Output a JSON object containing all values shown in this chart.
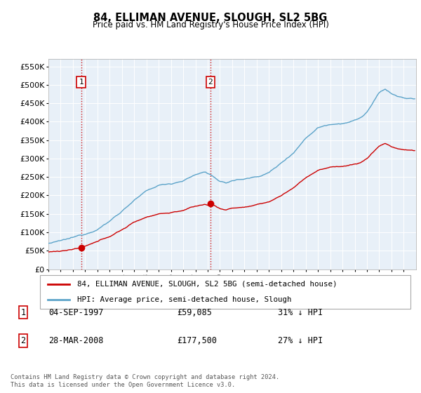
{
  "title": "84, ELLIMAN AVENUE, SLOUGH, SL2 5BG",
  "subtitle": "Price paid vs. HM Land Registry's House Price Index (HPI)",
  "legend_line1": "84, ELLIMAN AVENUE, SLOUGH, SL2 5BG (semi-detached house)",
  "legend_line2": "HPI: Average price, semi-detached house, Slough",
  "annotation1_date": "04-SEP-1997",
  "annotation1_price": "£59,085",
  "annotation1_pct": "31% ↓ HPI",
  "annotation1_year": 1997.67,
  "annotation1_value": 59085,
  "annotation2_date": "28-MAR-2008",
  "annotation2_price": "£177,500",
  "annotation2_pct": "27% ↓ HPI",
  "annotation2_year": 2008.23,
  "annotation2_value": 177500,
  "ylabel_ticks": [
    "£0",
    "£50K",
    "£100K",
    "£150K",
    "£200K",
    "£250K",
    "£300K",
    "£350K",
    "£400K",
    "£450K",
    "£500K",
    "£550K"
  ],
  "ytick_values": [
    0,
    50000,
    100000,
    150000,
    200000,
    250000,
    300000,
    350000,
    400000,
    450000,
    500000,
    550000
  ],
  "hpi_color": "#5ba3c9",
  "price_color": "#cc0000",
  "plot_bg": "#e8f0f8",
  "footer": "Contains HM Land Registry data © Crown copyright and database right 2024.\nThis data is licensed under the Open Government Licence v3.0.",
  "xmin": 1995.0,
  "xmax": 2025.0,
  "ymin": 0,
  "ymax": 570000
}
